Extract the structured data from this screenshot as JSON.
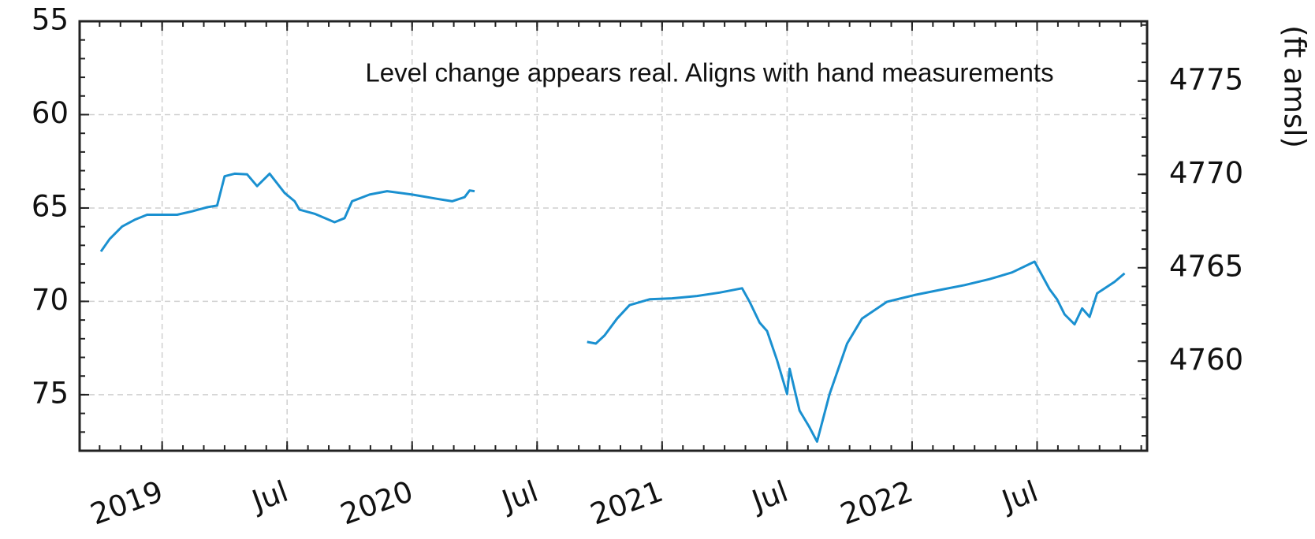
{
  "chart_data": {
    "type": "line",
    "annotation": "Level change appears real. Aligns with hand measurements",
    "y2label": "(ft amsl)",
    "color": "#1a90d0",
    "annotation_color": "#c00000",
    "grid": true,
    "ylim": [
      78,
      55
    ],
    "yticks": [
      55,
      60,
      65,
      70,
      75
    ],
    "y2lim": [
      4755.2,
      4778.2
    ],
    "y2ticks": [
      4760,
      4765,
      4770,
      4775
    ],
    "xlim": [
      2018.67,
      2022.94
    ],
    "xticks": [
      2019,
      {
        "value": 2019.5,
        "label": "Jul"
      },
      2020,
      {
        "value": 2020.5,
        "label": "Jul"
      },
      2021,
      {
        "value": 2021.5,
        "label": "Jul"
      },
      2022,
      {
        "value": 2022.5,
        "label": "Jul"
      }
    ],
    "x": [
      2018.755,
      2018.79,
      2018.84,
      2018.89,
      2018.94,
      2019.0,
      2019.06,
      2019.12,
      2019.18,
      2019.22,
      2019.25,
      2019.29,
      2019.34,
      2019.38,
      2019.43,
      2019.49,
      2019.53,
      2019.55,
      2019.61,
      2019.69,
      2019.73,
      2019.76,
      2019.83,
      2019.9,
      2020.0,
      2020.1,
      2020.16,
      2020.21,
      2020.23,
      2020.25,
      2020.5,
      2020.7,
      2020.735,
      2020.77,
      2020.82,
      2020.87,
      2020.95,
      2021.04,
      2021.14,
      2021.23,
      2021.32,
      2021.35,
      2021.39,
      2021.42,
      2021.46,
      2021.5,
      2021.51,
      2021.55,
      2021.59,
      2021.62,
      2021.67,
      2021.74,
      2021.8,
      2021.9,
      2022.01,
      2022.11,
      2022.21,
      2022.31,
      2022.4,
      2022.49,
      2022.55,
      2022.58,
      2022.61,
      2022.65,
      2022.68,
      2022.71,
      2022.74,
      2022.81,
      2022.85
    ],
    "values": [
      67.33,
      66.66,
      65.99,
      65.63,
      65.36,
      65.36,
      65.36,
      65.18,
      64.96,
      64.87,
      63.3,
      63.16,
      63.2,
      63.83,
      63.16,
      64.19,
      64.64,
      65.09,
      65.31,
      65.76,
      65.54,
      64.64,
      64.28,
      64.1,
      64.28,
      64.51,
      64.64,
      64.42,
      64.06,
      64.1,
      null,
      72.17,
      72.26,
      71.82,
      70.92,
      70.2,
      69.89,
      69.84,
      69.71,
      69.53,
      69.3,
      70.02,
      71.14,
      71.59,
      73.16,
      74.96,
      73.61,
      75.85,
      76.75,
      77.51,
      74.96,
      72.26,
      70.92,
      70.02,
      69.66,
      69.39,
      69.13,
      68.81,
      68.45,
      67.87,
      69.35,
      69.89,
      70.7,
      71.23,
      70.38,
      70.83,
      69.57,
      68.95,
      68.5
    ]
  }
}
